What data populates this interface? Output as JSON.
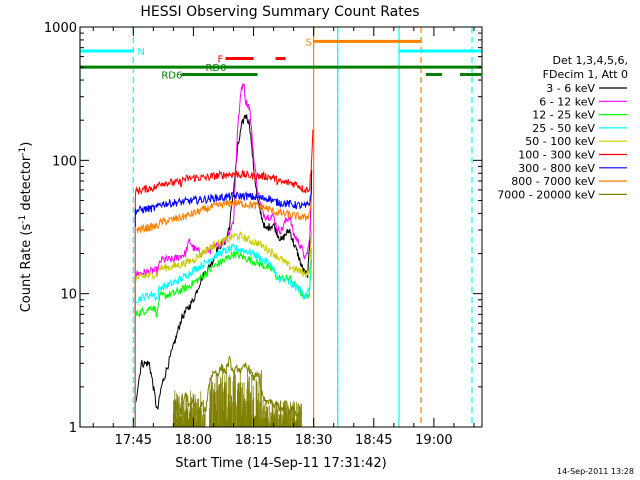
{
  "chart_data": {
    "type": "line",
    "title": "HESSI Observing Summary Count Rates",
    "xlabel": "Start Time (14-Sep-11 17:31:42)",
    "ylabel_prefix": "Count Rate (s",
    "ylabel_mid": " detector",
    "ylabel_suffix": ")",
    "ylabel_exp": "-1",
    "y_scale": "log",
    "ylim": [
      1,
      1000
    ],
    "xlim_min": [
      1051.7,
      1152.0
    ],
    "x_ticks": [
      {
        "v": 1065,
        "label": "17:45"
      },
      {
        "v": 1080,
        "label": "18:00"
      },
      {
        "v": 1095,
        "label": "18:15"
      },
      {
        "v": 1110,
        "label": "18:30"
      },
      {
        "v": 1125,
        "label": "18:45"
      },
      {
        "v": 1140,
        "label": "19:00"
      }
    ],
    "y_ticks": [
      {
        "v": 1,
        "label": "1"
      },
      {
        "v": 10,
        "label": "10"
      },
      {
        "v": 100,
        "label": "100"
      },
      {
        "v": 1000,
        "label": "1000"
      }
    ],
    "legend_header": [
      "Det 1,3,4,5,6,",
      "FDecim 1, Att 0"
    ],
    "series": [
      {
        "name": "3 - 6 keV",
        "color": "#000000",
        "points": [
          [
            1065.5,
            1.5
          ],
          [
            1067,
            3
          ],
          [
            1069,
            3
          ],
          [
            1070,
            2
          ],
          [
            1071,
            1.3
          ],
          [
            1072,
            2
          ],
          [
            1075,
            4
          ],
          [
            1077,
            6.5
          ],
          [
            1080,
            9
          ],
          [
            1082,
            13
          ],
          [
            1084,
            16
          ],
          [
            1085,
            18
          ],
          [
            1086,
            22
          ],
          [
            1088,
            25
          ],
          [
            1089,
            32
          ],
          [
            1090,
            60
          ],
          [
            1091,
            120
          ],
          [
            1092,
            180
          ],
          [
            1093,
            220
          ],
          [
            1094,
            190
          ],
          [
            1095,
            90
          ],
          [
            1096,
            50
          ],
          [
            1097,
            38
          ],
          [
            1098,
            30
          ],
          [
            1099,
            32
          ],
          [
            1100,
            33
          ],
          [
            1101,
            28
          ],
          [
            1102,
            25
          ],
          [
            1103,
            28
          ],
          [
            1104,
            30
          ],
          [
            1105,
            24
          ],
          [
            1106,
            20
          ],
          [
            1107,
            16
          ],
          [
            1108,
            14
          ],
          [
            1108.5,
            14
          ],
          [
            1109,
            22
          ],
          [
            1109.5,
            85
          ]
        ]
      },
      {
        "name": "6 - 12 keV",
        "color": "#ff00ff",
        "points": [
          [
            1065.5,
            14
          ],
          [
            1071,
            15
          ],
          [
            1072,
            18
          ],
          [
            1075,
            18
          ],
          [
            1078,
            20
          ],
          [
            1079,
            25
          ],
          [
            1080,
            22
          ],
          [
            1082,
            20
          ],
          [
            1085,
            22
          ],
          [
            1088,
            25
          ],
          [
            1090,
            35
          ],
          [
            1091,
            170
          ],
          [
            1092,
            350
          ],
          [
            1092.5,
            390
          ],
          [
            1093,
            280
          ],
          [
            1094,
            250
          ],
          [
            1095,
            110
          ],
          [
            1096,
            60
          ],
          [
            1097,
            42
          ],
          [
            1098,
            38
          ],
          [
            1100,
            38
          ],
          [
            1101,
            30
          ],
          [
            1102,
            30
          ],
          [
            1103,
            35
          ],
          [
            1104,
            38
          ],
          [
            1105,
            28
          ],
          [
            1106,
            25
          ],
          [
            1107,
            22
          ],
          [
            1108,
            18
          ],
          [
            1109,
            25
          ],
          [
            1109.5,
            60
          ]
        ]
      },
      {
        "name": "12 - 25 keV",
        "color": "#00ff00",
        "points": [
          [
            1065.5,
            7
          ],
          [
            1068,
            7.5
          ],
          [
            1070,
            8
          ],
          [
            1071,
            7
          ],
          [
            1071.5,
            9.5
          ],
          [
            1075,
            10
          ],
          [
            1078,
            11
          ],
          [
            1080,
            12
          ],
          [
            1083,
            14
          ],
          [
            1085,
            16
          ],
          [
            1088,
            18
          ],
          [
            1090,
            20
          ],
          [
            1092,
            19
          ],
          [
            1094,
            18
          ],
          [
            1096,
            17
          ],
          [
            1098,
            16
          ],
          [
            1100,
            15
          ],
          [
            1101,
            13
          ],
          [
            1102,
            13
          ],
          [
            1104,
            13
          ],
          [
            1106,
            11
          ],
          [
            1107,
            10
          ],
          [
            1108,
            9.5
          ],
          [
            1109,
            10
          ],
          [
            1109.5,
            18
          ]
        ]
      },
      {
        "name": "25 - 50 keV",
        "color": "#00ffff",
        "points": [
          [
            1065.5,
            9
          ],
          [
            1068,
            9.5
          ],
          [
            1070,
            10
          ],
          [
            1071,
            9
          ],
          [
            1071.5,
            11
          ],
          [
            1075,
            12
          ],
          [
            1078,
            13.5
          ],
          [
            1080,
            15
          ],
          [
            1083,
            17
          ],
          [
            1085,
            19
          ],
          [
            1088,
            21
          ],
          [
            1090,
            22
          ],
          [
            1093,
            21
          ],
          [
            1095,
            20
          ],
          [
            1097,
            18
          ],
          [
            1099,
            17
          ],
          [
            1100,
            15
          ],
          [
            1101,
            13
          ],
          [
            1102,
            13
          ],
          [
            1104,
            12
          ],
          [
            1106,
            11
          ],
          [
            1107,
            10.5
          ],
          [
            1108,
            9.5
          ],
          [
            1109,
            11
          ],
          [
            1109.5,
            22
          ]
        ]
      },
      {
        "name": "50 - 100 keV",
        "color": "#cccc00",
        "points": [
          [
            1065.5,
            13
          ],
          [
            1068,
            13.5
          ],
          [
            1071,
            14
          ],
          [
            1071.5,
            15.5
          ],
          [
            1075,
            16
          ],
          [
            1078,
            17
          ],
          [
            1080,
            18
          ],
          [
            1083,
            21
          ],
          [
            1085,
            23
          ],
          [
            1088,
            25
          ],
          [
            1090,
            27
          ],
          [
            1092,
            27
          ],
          [
            1094,
            25
          ],
          [
            1096,
            24
          ],
          [
            1098,
            22
          ],
          [
            1100,
            20
          ],
          [
            1102,
            18
          ],
          [
            1104,
            16
          ],
          [
            1106,
            15
          ],
          [
            1108,
            14
          ],
          [
            1109,
            15
          ],
          [
            1109.5,
            30
          ]
        ]
      },
      {
        "name": "100 - 300 keV",
        "color": "#ff0000",
        "points": [
          [
            1065.5,
            58
          ],
          [
            1068,
            61
          ],
          [
            1071,
            63
          ],
          [
            1071.5,
            68
          ],
          [
            1075,
            68
          ],
          [
            1077,
            68
          ],
          [
            1077.5,
            72
          ],
          [
            1080,
            74
          ],
          [
            1083,
            74
          ],
          [
            1085,
            76
          ],
          [
            1088,
            78
          ],
          [
            1090,
            79
          ],
          [
            1092,
            78
          ],
          [
            1094,
            77
          ],
          [
            1096,
            76
          ],
          [
            1098,
            76
          ],
          [
            1100,
            74
          ],
          [
            1101,
            70
          ],
          [
            1102,
            68
          ],
          [
            1104,
            68
          ],
          [
            1106,
            66
          ],
          [
            1107,
            62
          ],
          [
            1108,
            60
          ],
          [
            1109,
            62
          ],
          [
            1109.5,
            100
          ],
          [
            1109.8,
            170
          ]
        ]
      },
      {
        "name": "300 - 800 keV",
        "color": "#0000ff",
        "points": [
          [
            1065.5,
            42
          ],
          [
            1068,
            43
          ],
          [
            1071,
            44
          ],
          [
            1071.5,
            47
          ],
          [
            1075,
            48
          ],
          [
            1078,
            49
          ],
          [
            1080,
            50
          ],
          [
            1083,
            51
          ],
          [
            1085,
            52
          ],
          [
            1088,
            53
          ],
          [
            1090,
            54
          ],
          [
            1093,
            54
          ],
          [
            1095,
            53
          ],
          [
            1097,
            52
          ],
          [
            1099,
            52
          ],
          [
            1100,
            49
          ],
          [
            1102,
            48
          ],
          [
            1104,
            47
          ],
          [
            1106,
            46
          ],
          [
            1108,
            45
          ],
          [
            1109,
            48
          ],
          [
            1109.5,
            65
          ]
        ]
      },
      {
        "name": "800 - 7000 keV",
        "color": "#ff8000",
        "points": [
          [
            1065.5,
            30
          ],
          [
            1068,
            31
          ],
          [
            1071,
            32
          ],
          [
            1071.5,
            34
          ],
          [
            1075,
            36
          ],
          [
            1078,
            38
          ],
          [
            1080,
            40
          ],
          [
            1083,
            43
          ],
          [
            1085,
            45
          ],
          [
            1088,
            47
          ],
          [
            1090,
            48
          ],
          [
            1093,
            47
          ],
          [
            1095,
            46
          ],
          [
            1097,
            45
          ],
          [
            1099,
            43
          ],
          [
            1100,
            41
          ],
          [
            1102,
            40
          ],
          [
            1104,
            39
          ],
          [
            1106,
            38
          ],
          [
            1108,
            37
          ],
          [
            1109,
            40
          ],
          [
            1109.5,
            55
          ]
        ]
      },
      {
        "name": "7000 - 20000 keV",
        "color": "#808000",
        "points": [
          [
            1075,
            1.2
          ],
          [
            1076,
            1.5
          ],
          [
            1077,
            1.3
          ],
          [
            1078,
            1.8
          ],
          [
            1079,
            1.4
          ],
          [
            1080,
            1.6
          ],
          [
            1081,
            1.2
          ],
          [
            1082,
            1.5
          ],
          [
            1083,
            1.3
          ],
          [
            1084,
            2.2
          ],
          [
            1085,
            2.6
          ],
          [
            1086,
            2.5
          ],
          [
            1087,
            2.8
          ],
          [
            1088,
            2.6
          ],
          [
            1089,
            3.2
          ],
          [
            1090,
            2.5
          ],
          [
            1091,
            2.8
          ],
          [
            1092,
            2.6
          ],
          [
            1093,
            2.9
          ],
          [
            1094,
            2.7
          ],
          [
            1095,
            2.3
          ],
          [
            1096,
            2.6
          ],
          [
            1097,
            1.8
          ],
          [
            1098,
            1.5
          ],
          [
            1099,
            1.6
          ],
          [
            1100,
            1.4
          ],
          [
            1101,
            1.5
          ],
          [
            1102,
            1.3
          ],
          [
            1103,
            1.5
          ],
          [
            1104,
            1.3
          ],
          [
            1105,
            1.4
          ],
          [
            1106,
            1.2
          ],
          [
            1107,
            1.3
          ]
        ]
      }
    ],
    "noise_band": {
      "color": "#808000",
      "ranges": [
        [
          1075,
          1083,
          1.0,
          1.9
        ],
        [
          1084,
          1097,
          1.0,
          2.7
        ],
        [
          1097,
          1107,
          1.0,
          1.6
        ]
      ]
    },
    "vertical_lines": [
      {
        "x": 1051.7,
        "color": "#00ffff",
        "dash": false
      },
      {
        "x": 1065.0,
        "color": "#00ffff",
        "dash": true
      },
      {
        "x": 1110.0,
        "color": "#ff8000",
        "dash": false
      },
      {
        "x": 1116.0,
        "color": "#00ffff",
        "dash": false
      },
      {
        "x": 1116.0,
        "color": "#00ffff",
        "dash": true
      },
      {
        "x": 1131.3,
        "color": "#00ffff",
        "dash": false
      },
      {
        "x": 1136.8,
        "color": "#ff8000",
        "dash": true
      },
      {
        "x": 1149.5,
        "color": "#00ffff",
        "dash": true
      }
    ],
    "flag_bars": [
      {
        "label": "N",
        "color": "#00ffff",
        "y": 660,
        "segments": [
          [
            1051.7,
            1065
          ],
          [
            1131.3,
            1151.8
          ]
        ],
        "label_x": 1066,
        "label_color": "#00ffff"
      },
      {
        "label": "S",
        "color": "#ff8000",
        "y": 780,
        "segments": [
          [
            1110,
            1136.8
          ]
        ],
        "label_x": 1108,
        "label_color": "#ff8000"
      },
      {
        "label": "F",
        "color": "#ff0000",
        "y": 580,
        "segments": [
          [
            1088,
            1095
          ],
          [
            1100.5,
            1103
          ]
        ],
        "label_x": 1086,
        "label_color": "#ff0000"
      },
      {
        "label": "RD0",
        "color": "#008000",
        "y": 500,
        "segments": [
          [
            1051.7,
            1151.8
          ]
        ],
        "label_x": 1083,
        "label_color": "#008000"
      },
      {
        "label": "RD6",
        "color": "#008000",
        "y": 440,
        "segments": [
          [
            1077,
            1096
          ],
          [
            1138,
            1142
          ],
          [
            1146.5,
            1151.8
          ]
        ],
        "label_x": 1072,
        "label_color": "#008000"
      }
    ],
    "grid": false,
    "legend_position": "right"
  },
  "footer_stamp": "14-Sep-2011 13:28"
}
